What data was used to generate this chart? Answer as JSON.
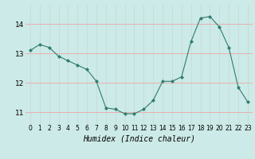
{
  "x": [
    0,
    1,
    2,
    3,
    4,
    5,
    6,
    7,
    8,
    9,
    10,
    11,
    12,
    13,
    14,
    15,
    16,
    17,
    18,
    19,
    20,
    21,
    22,
    23
  ],
  "y": [
    13.1,
    13.3,
    13.2,
    12.9,
    12.75,
    12.6,
    12.45,
    12.05,
    11.15,
    11.1,
    10.95,
    10.95,
    11.1,
    11.4,
    12.05,
    12.05,
    12.2,
    13.4,
    14.2,
    14.25,
    13.9,
    13.2,
    11.85,
    11.35
  ],
  "line_color": "#2e7d6e",
  "marker": "D",
  "marker_size": 2.0,
  "bg_color": "#cceae7",
  "grid_color_h": "#e8b0b0",
  "grid_color_v": "#c8ddd9",
  "xlabel": "Humidex (Indice chaleur)",
  "xlabel_fontsize": 7,
  "yticks": [
    11,
    12,
    13,
    14
  ],
  "xticks": [
    0,
    1,
    2,
    3,
    4,
    5,
    6,
    7,
    8,
    9,
    10,
    11,
    12,
    13,
    14,
    15,
    16,
    17,
    18,
    19,
    20,
    21,
    22,
    23
  ],
  "xlim": [
    -0.5,
    23.5
  ],
  "ylim": [
    10.6,
    14.65
  ]
}
